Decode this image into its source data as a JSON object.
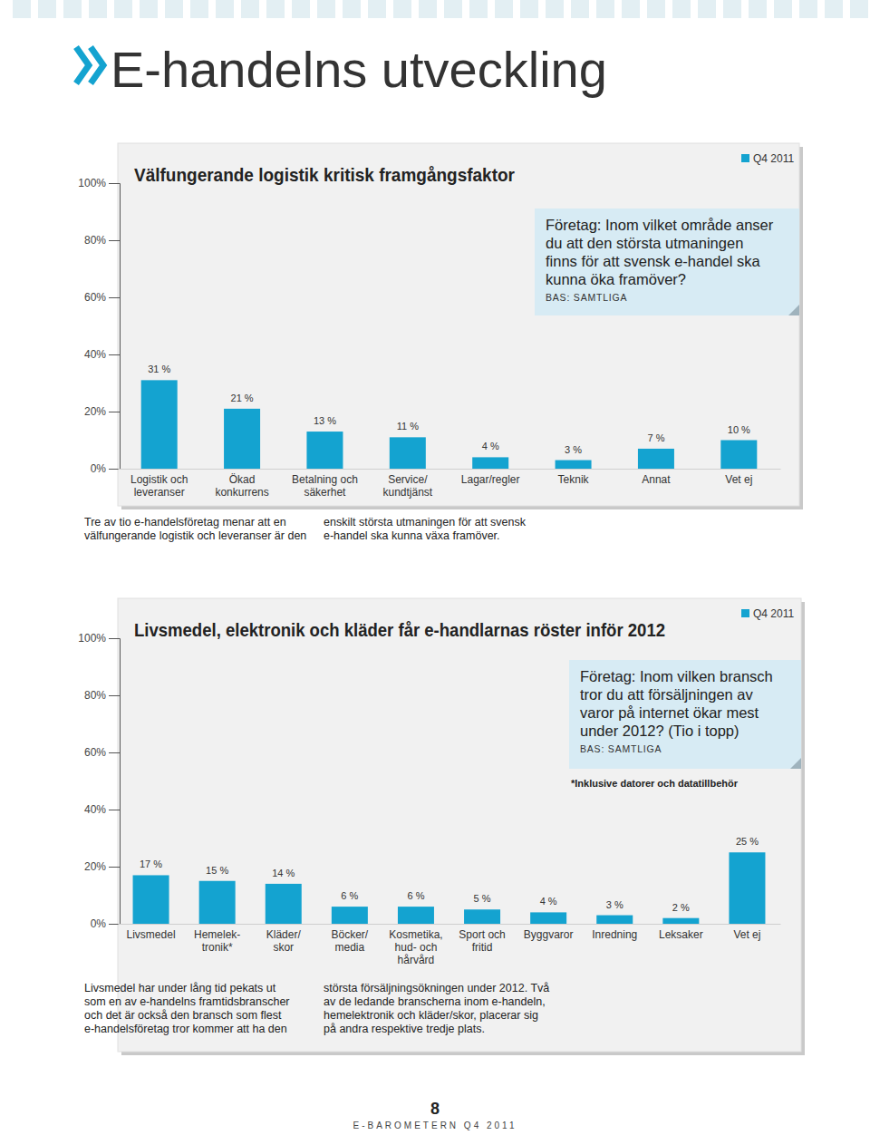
{
  "page": {
    "header": "E-handelns utveckling",
    "page_number": 8,
    "footer": "E-BAROMETERN Q4 2011"
  },
  "chart_data": [
    {
      "type": "bar",
      "title": "Välfungerande logistik kritisk framgångsfaktor",
      "subtitle": "Företag: Inom vilket område anser\ndu att den största utmaningen\nfinns för att svensk e-handel ska\nkunna öka framöver?",
      "annotations": {
        "base": "BAS: SAMTLIGA",
        "caption": [
          "Tre av tio e-handelsföretag menar att en\nvälfungerande logistik och leveranser är den",
          "enskilt största utmaningen för att svensk\ne-handel ska kunna växa framöver."
        ]
      },
      "categories": [
        "Logistik och\nleveranser",
        "Ökad\nkonkurrens",
        "Betalning och\nsäkerhet",
        "Service/\nkundtjänst",
        "Lagar/regler",
        "Teknik",
        "Annat",
        "Vet ej"
      ],
      "series": [
        {
          "name": "Q4 2011",
          "color": "#14a3d0",
          "values": [
            31,
            21,
            13,
            11,
            4,
            3,
            7,
            10
          ],
          "value_labels": [
            "31 %",
            "21 %",
            "13 %",
            "11 %",
            "4 %",
            "3 %",
            "7 %",
            "10 %"
          ]
        }
      ],
      "ylim": [
        0,
        100
      ],
      "yticks": [
        {
          "value": 0,
          "label": "0%"
        },
        {
          "value": 20,
          "label": "20%"
        },
        {
          "value": 40,
          "label": "40%"
        },
        {
          "value": 60,
          "label": "60%"
        },
        {
          "value": 80,
          "label": "80%"
        },
        {
          "value": 100,
          "label": "100%"
        }
      ],
      "grid": false,
      "legend": "top-right",
      "data_labels": true
    },
    {
      "type": "bar",
      "title": "Livsmedel, elektronik och kläder får e-handlarnas röster inför 2012",
      "subtitle": "Företag: Inom vilken bransch\ntror du att försäljningen av\nvaror på internet ökar mest\nunder 2012? (Tio i topp)",
      "annotations": {
        "base": "BAS: SAMTLIGA",
        "footnote": "*Inklusive datorer och datatillbehör",
        "caption": [
          "Livsmedel har under lång tid pekats ut\nsom en av e-handelns framtidsbranscher\noch det är också den bransch som flest\ne-handelsföretag tror kommer att ha den",
          "största försäljningsökningen under 2012. Två\nav de ledande branscherna inom e-handeln,\nhemelektronik och kläder/skor, placerar sig\npå andra respektive tredje plats."
        ]
      },
      "categories": [
        "Livsmedel",
        "Hemelek-\ntronik*",
        "Kläder/\nskor",
        "Böcker/\nmedia",
        "Kosmetika,\nhud- och\nhårvård",
        "Sport och\nfritid",
        "Byggvaror",
        "Inredning",
        "Leksaker",
        "Vet ej"
      ],
      "series": [
        {
          "name": "Q4 2011",
          "color": "#14a3d0",
          "values": [
            17,
            15,
            14,
            6,
            6,
            5,
            4,
            3,
            2,
            25
          ],
          "value_labels": [
            "17 %",
            "15 %",
            "14 %",
            "6 %",
            "6 %",
            "5 %",
            "4 %",
            "3 %",
            "2 %",
            "25 %"
          ]
        }
      ],
      "ylim": [
        0,
        100
      ],
      "yticks": [
        {
          "value": 0,
          "label": "0%"
        },
        {
          "value": 20,
          "label": "20%"
        },
        {
          "value": 40,
          "label": "40%"
        },
        {
          "value": 60,
          "label": "60%"
        },
        {
          "value": 80,
          "label": "80%"
        },
        {
          "value": 100,
          "label": "100%"
        }
      ],
      "grid": false,
      "legend": "top-right",
      "data_labels": true
    }
  ]
}
